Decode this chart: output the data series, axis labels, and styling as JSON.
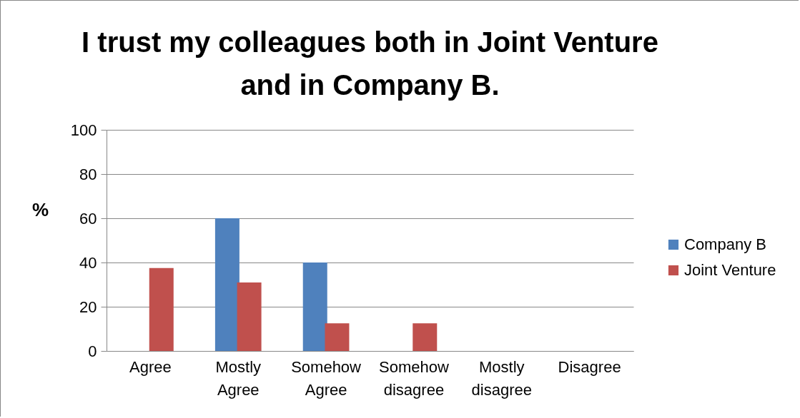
{
  "chart_data": {
    "type": "bar",
    "title": [
      "I trust my colleagues both in Joint Venture",
      "and in Company B."
    ],
    "ylabel": "%",
    "categories": [
      "Agree",
      "Mostly Agree",
      "Somehow Agree",
      "Somehow disagree",
      "Mostly disagree",
      "Disagree"
    ],
    "series": [
      {
        "name": "Company B",
        "color": "#4f81bd",
        "values": [
          0,
          60,
          40,
          0,
          0,
          0
        ]
      },
      {
        "name": "Joint Venture",
        "color": "#c0504d",
        "values": [
          37.5,
          31,
          12.5,
          12.5,
          0,
          0
        ]
      }
    ],
    "ylim": [
      0,
      100
    ],
    "yticks": [
      0,
      20,
      40,
      60,
      80,
      100
    ],
    "grid": "y",
    "legend": "right"
  }
}
